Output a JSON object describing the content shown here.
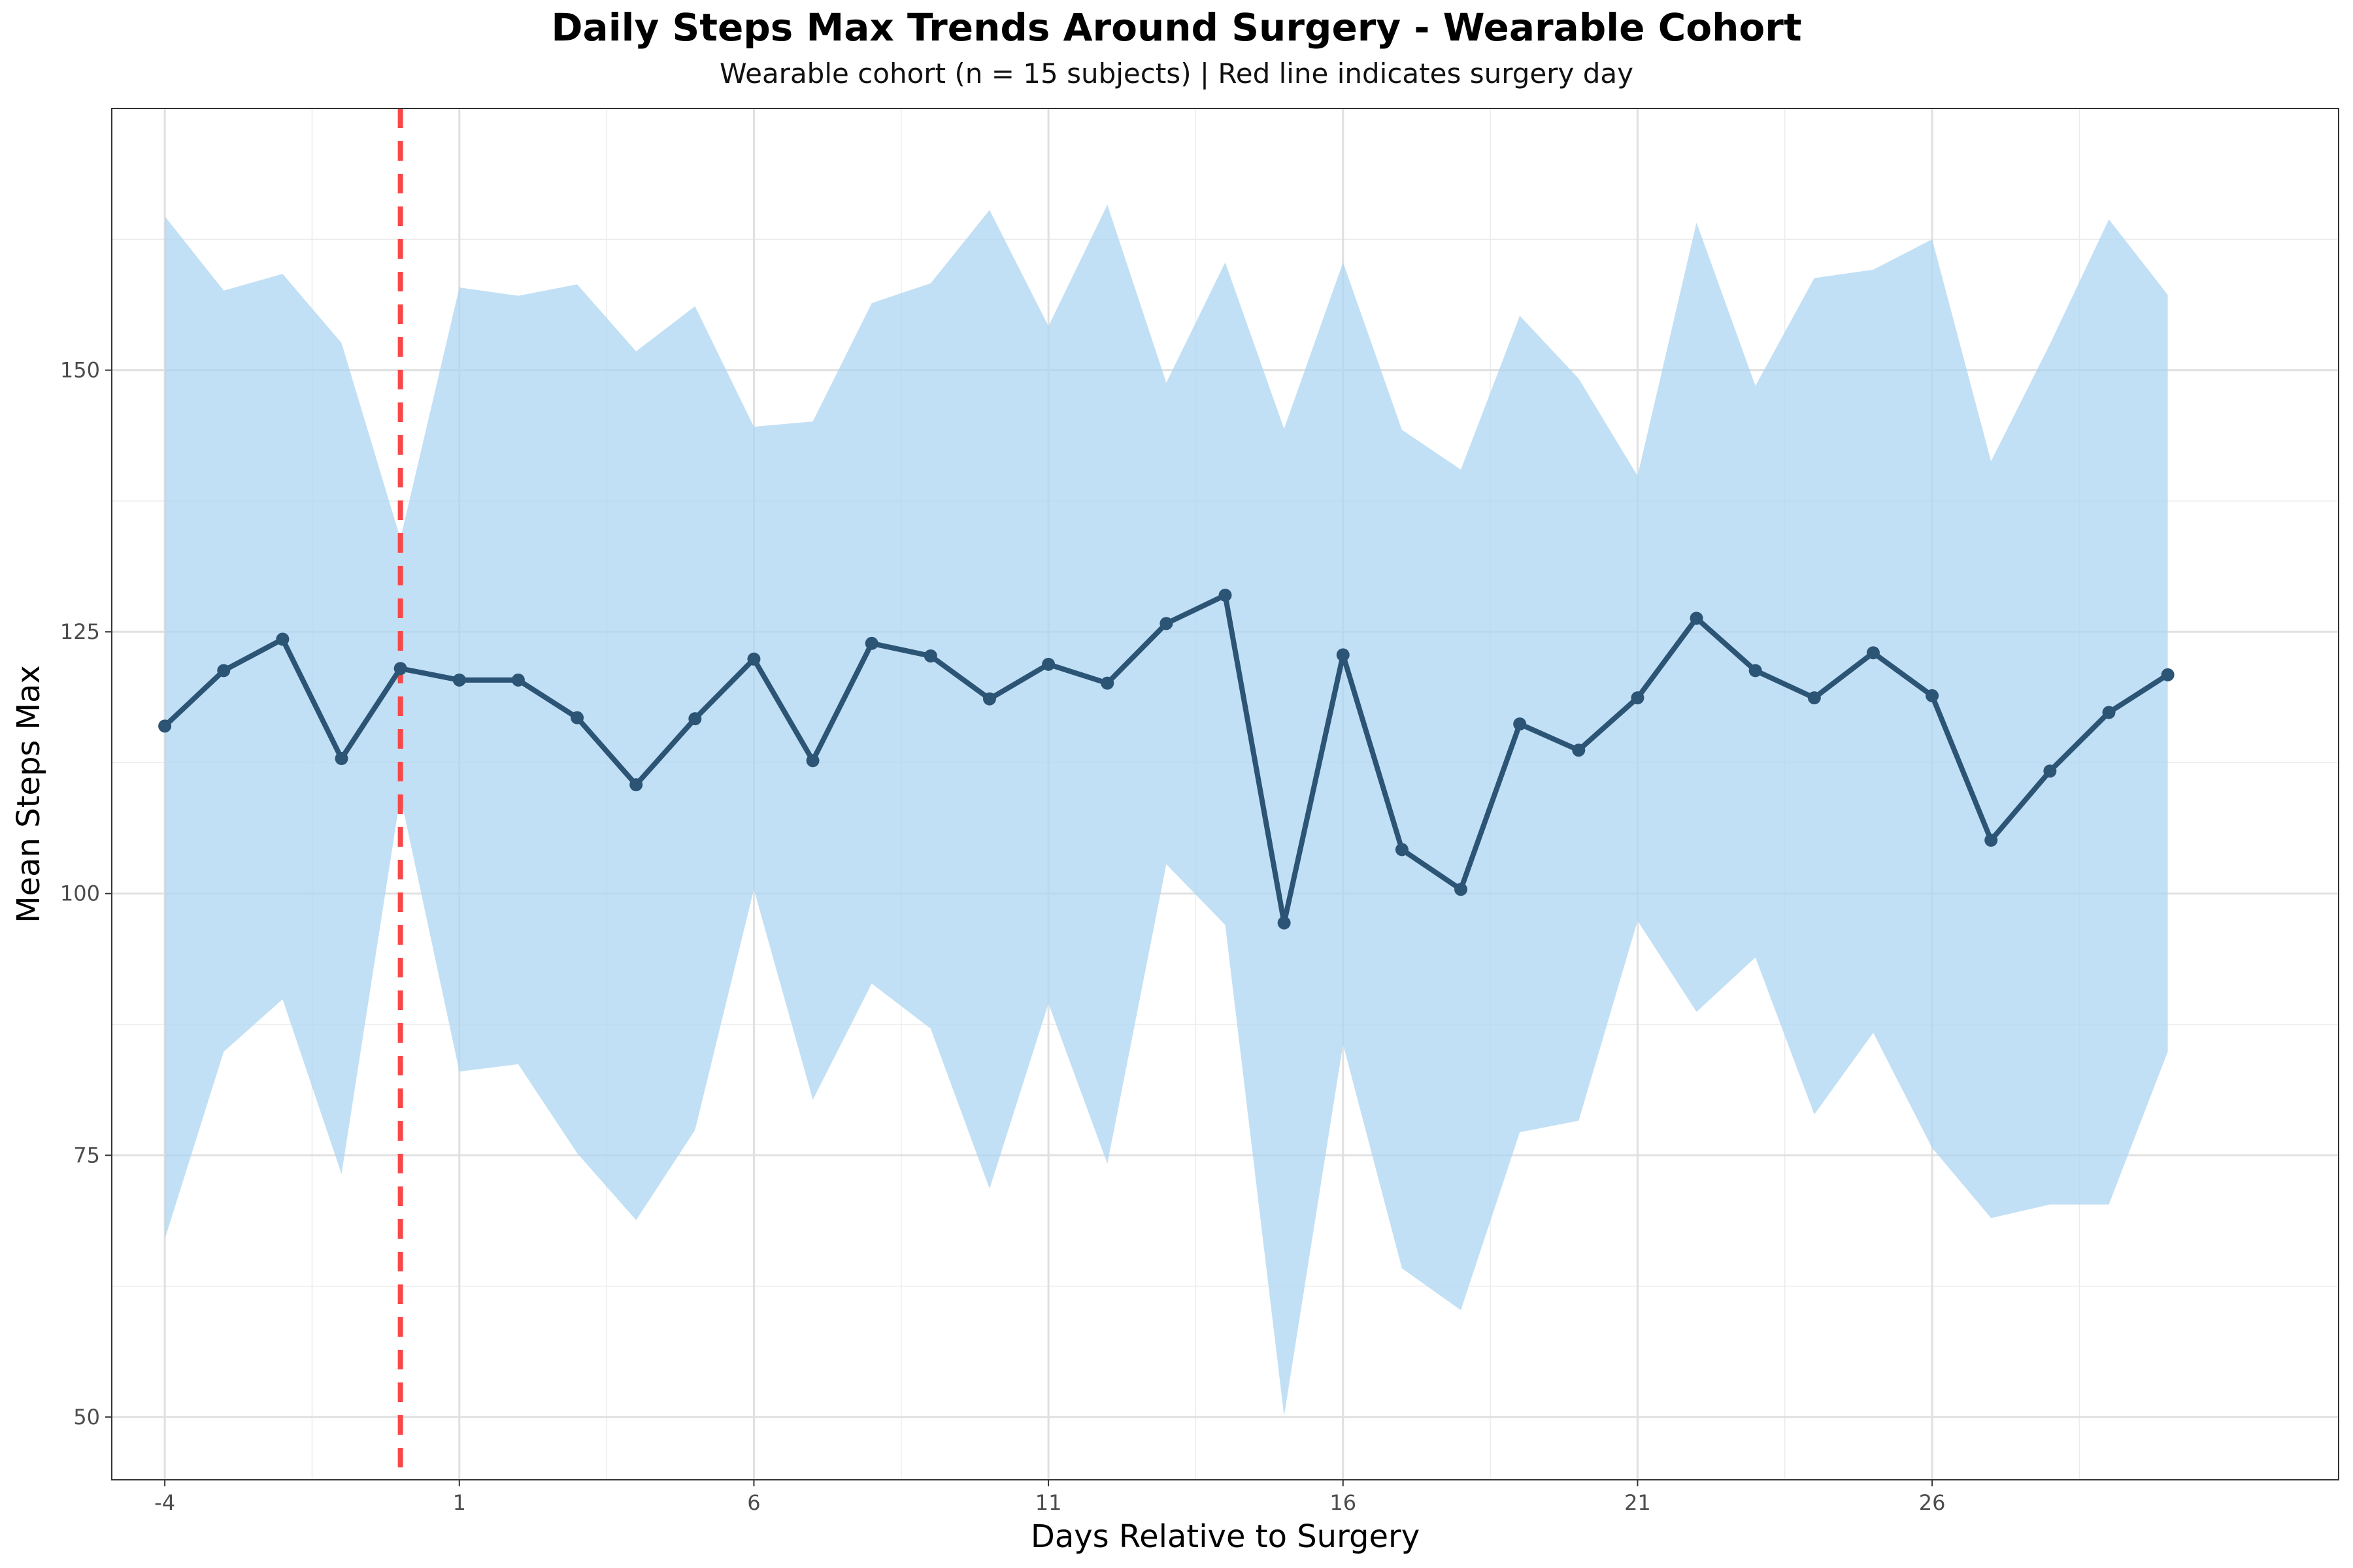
{
  "chart_data": {
    "type": "line",
    "title": "Daily Steps Max Trends Around Surgery - Wearable Cohort",
    "subtitle": "Wearable cohort (n = 15 subjects) | Red line indicates surgery day",
    "xlabel": "Days Relative to Surgery",
    "ylabel": "Mean Steps Max",
    "xlim": [
      -4.9,
      32.9
    ],
    "ylim": [
      44,
      175
    ],
    "x_ticks": [
      -4,
      1,
      6,
      11,
      16,
      21,
      26
    ],
    "x_tick_labels": [
      "-4",
      "1",
      "6",
      "11",
      "16",
      "21",
      "26"
    ],
    "y_ticks": [
      50,
      75,
      100,
      125,
      150
    ],
    "y_tick_labels": [
      "50",
      "75",
      "100",
      "125",
      "150"
    ],
    "grid": true,
    "vline": {
      "x": 0,
      "color": "#f8484a",
      "style": "dashed"
    },
    "x": [
      -4,
      -3,
      -2,
      -1,
      0,
      1,
      2,
      3,
      4,
      5,
      6,
      7,
      8,
      9,
      10,
      11,
      12,
      13,
      14,
      15,
      16,
      17,
      18,
      19,
      20,
      21,
      22,
      23,
      24,
      25,
      26,
      27,
      28,
      29,
      30
    ],
    "series": [
      {
        "type": "line",
        "color": "#2c5475",
        "values": [
          116,
          121.3,
          124.3,
          112.9,
          121.5,
          120.4,
          120.4,
          116.8,
          110.4,
          116.7,
          122.4,
          112.7,
          123.9,
          122.7,
          118.6,
          121.9,
          120.1,
          125.8,
          128.5,
          97.2,
          122.8,
          104.2,
          100.4,
          116.2,
          113.7,
          118.7,
          126.3,
          121.3,
          118.7,
          123,
          118.9,
          105.1,
          111.7,
          117.3,
          120.9
        ],
        "lower": [
          67,
          84.9,
          89.9,
          73.2,
          109.3,
          83,
          83.7,
          75.2,
          68.8,
          77.4,
          100.4,
          80.3,
          91.4,
          87.1,
          71.8,
          89.5,
          74.2,
          102.8,
          97,
          50.1,
          85.6,
          64.2,
          60.2,
          77.2,
          78.3,
          97.4,
          88.7,
          93.9,
          78.9,
          86.7,
          75.7,
          69,
          70.3,
          70.3,
          84.9
        ],
        "upper": [
          164.7,
          157.6,
          159.2,
          152.6,
          133.9,
          157.9,
          157.1,
          158.2,
          151.8,
          156.1,
          144.6,
          145.1,
          156.4,
          158.3,
          165.3,
          154.2,
          165.8,
          148.8,
          160.3,
          144.4,
          160.3,
          144.3,
          140.5,
          155.2,
          149.2,
          139.9,
          164.1,
          148.5,
          158.8,
          159.6,
          162.5,
          141.3,
          152.5,
          164.4,
          157.2
        ]
      }
    ],
    "band_color": "#aed6f1",
    "band_opacity": 0.75
  }
}
